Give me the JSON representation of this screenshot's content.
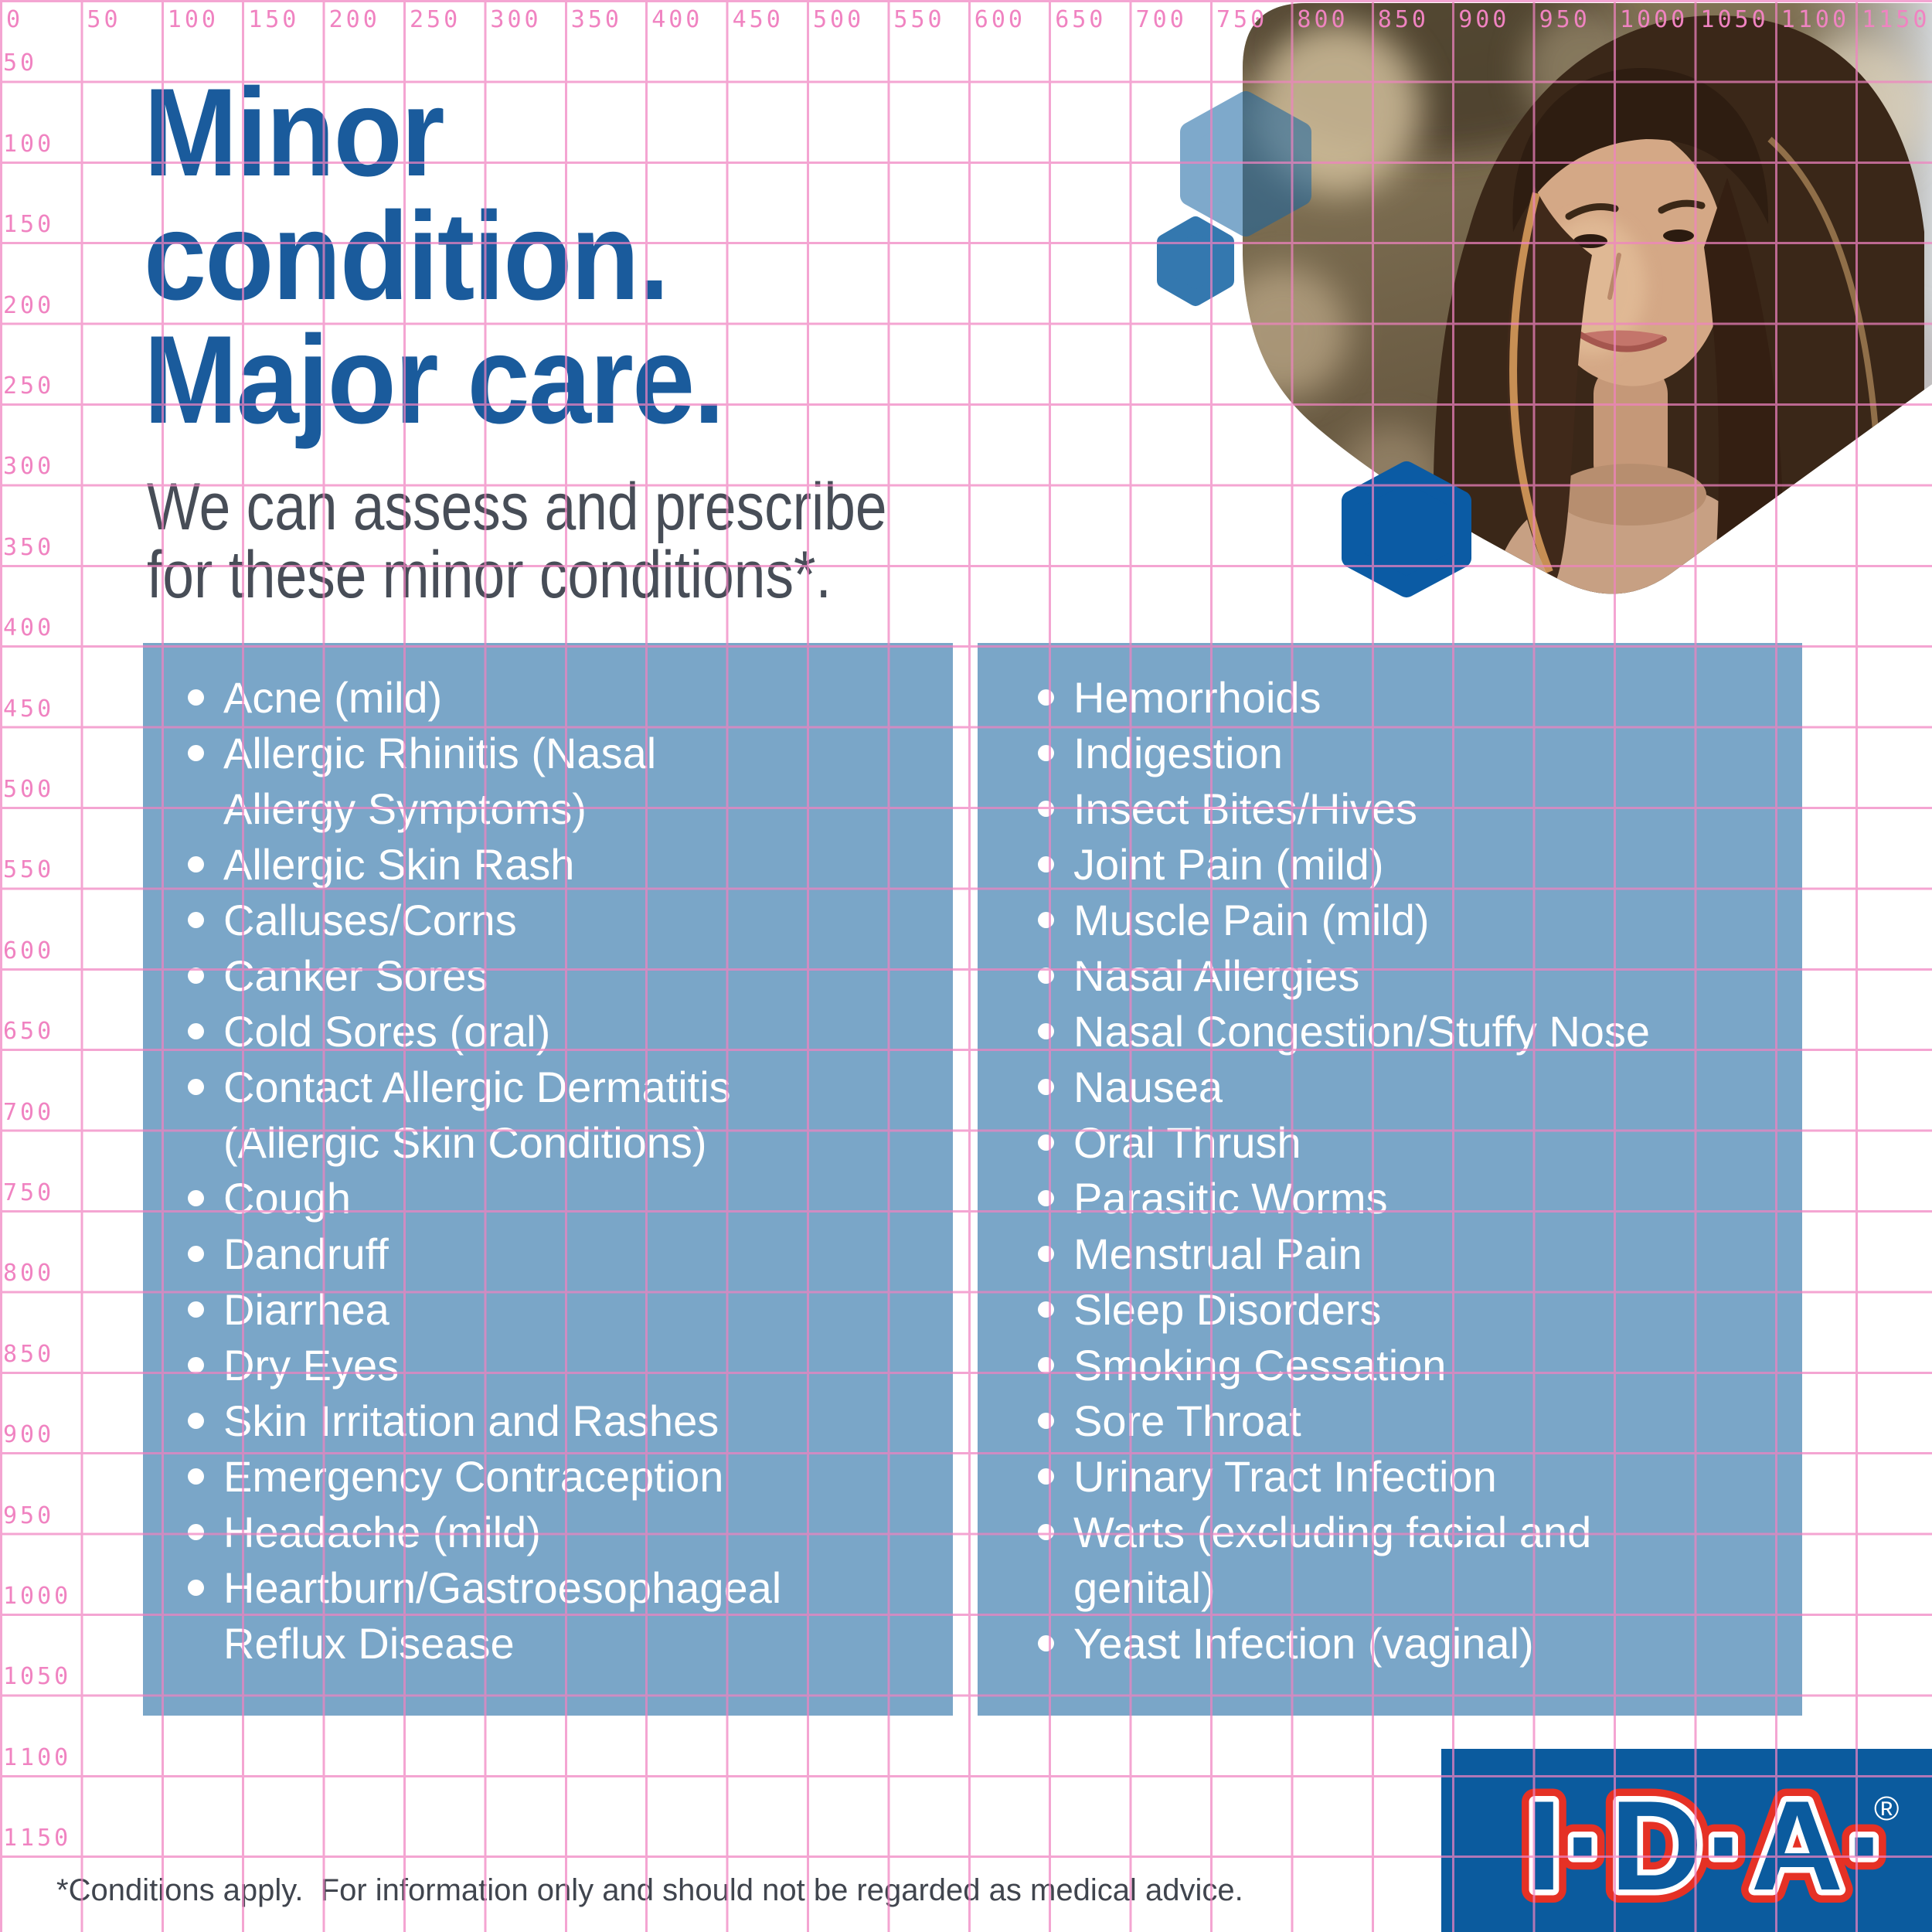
{
  "title": {
    "lines": [
      "Minor",
      "condition.",
      "Major care."
    ]
  },
  "subtitle": {
    "lines": [
      "We can assess and prescribe",
      "for these minor conditions*."
    ]
  },
  "lists": {
    "left": [
      "Acne (mild)",
      "Allergic Rhinitis (Nasal\nAllergy Symptoms)",
      "Allergic Skin Rash",
      "Calluses/Corns",
      "Canker Sores",
      "Cold Sores (oral)",
      "Contact Allergic Dermatitis\n(Allergic Skin Conditions)",
      "Cough",
      "Dandruff",
      "Diarrhea",
      "Dry Eyes",
      "Skin Irritation and Rashes",
      "Emergency Contraception",
      "Headache (mild)",
      "Heartburn/Gastroesophageal\nReflux Disease"
    ],
    "right": [
      "Hemorrhoids",
      "Indigestion",
      "Insect Bites/Hives",
      "Joint Pain (mild)",
      "Muscle Pain (mild)",
      "Nasal Allergies",
      "Nasal Congestion/Stuffy Nose",
      "Nausea",
      "Oral Thrush",
      "Parasitic Worms",
      "Menstrual Pain",
      "Sleep Disorders",
      "Smoking Cessation",
      "Sore Throat",
      "Urinary Tract Infection",
      "Warts (excluding facial and\ngenital)",
      "Yeast Infection (vaginal)"
    ]
  },
  "footer": {
    "disclaimer": "*Conditions apply.  For information only and should not be regarded as medical advice."
  },
  "logo": {
    "brand": "I·D·A·",
    "registered": "®"
  },
  "ruler": {
    "top_labels": [
      "0",
      "50",
      "100",
      "150",
      "200",
      "250",
      "300",
      "350",
      "400",
      "450",
      "500",
      "550",
      "600",
      "650",
      "700",
      "750",
      "800",
      "850",
      "900",
      "950",
      "1000",
      "1050",
      "1100",
      "1150"
    ],
    "left_labels": [
      "50",
      "100",
      "150",
      "200",
      "250",
      "300",
      "350",
      "400",
      "450",
      "500",
      "550",
      "600",
      "650",
      "700",
      "750",
      "800",
      "850",
      "900",
      "950",
      "1000",
      "1050",
      "1100",
      "1150"
    ]
  },
  "colors": {
    "title_blue": "#1a5b9c",
    "panel_blue": "#7aa6c8",
    "logo_blue": "#0b5b9e",
    "logo_red": "#e53125",
    "grid_pink": "#f083c1",
    "hex_dark": "#0b5ba4",
    "hex_mid": "#3478af",
    "text_slate": "#474d57"
  }
}
